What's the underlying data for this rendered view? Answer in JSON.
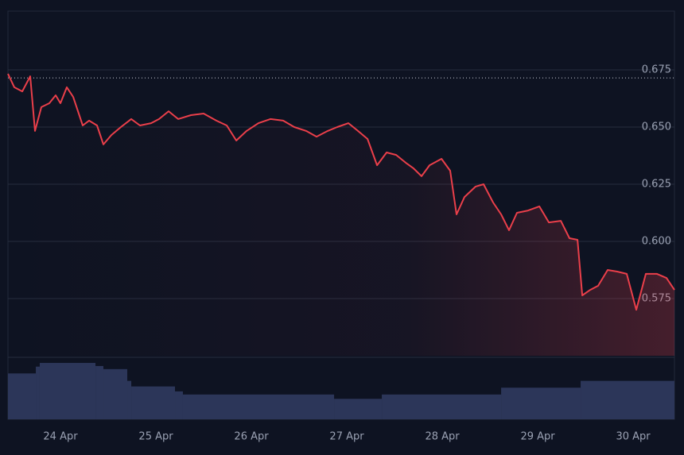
{
  "chart_data": {
    "type": "line",
    "x": [
      23.45,
      23.517,
      23.6,
      23.683,
      23.733,
      23.8,
      23.883,
      23.95,
      24.0,
      24.067,
      24.133,
      24.233,
      24.3,
      24.383,
      24.45,
      24.533,
      24.633,
      24.742,
      24.833,
      24.95,
      25.033,
      25.133,
      25.233,
      25.367,
      25.5,
      25.633,
      25.742,
      25.842,
      25.95,
      26.075,
      26.2,
      26.333,
      26.45,
      26.575,
      26.683,
      26.8,
      26.9,
      27.017,
      27.117,
      27.217,
      27.317,
      27.417,
      27.517,
      27.617,
      27.7,
      27.783,
      27.867,
      27.992,
      28.083,
      28.15,
      28.233,
      28.35,
      28.433,
      28.533,
      28.617,
      28.7,
      28.783,
      28.9,
      29.017,
      29.117,
      29.242,
      29.333,
      29.417,
      29.467,
      29.55,
      29.633,
      29.733,
      29.833,
      29.933,
      30.033,
      30.133,
      30.25,
      30.35,
      30.433
    ],
    "values": [
      0.6733,
      0.6674,
      0.6656,
      0.6722,
      0.6483,
      0.6587,
      0.6604,
      0.6639,
      0.6604,
      0.6674,
      0.6632,
      0.6507,
      0.6528,
      0.6507,
      0.6424,
      0.6465,
      0.65,
      0.6535,
      0.6507,
      0.6517,
      0.6535,
      0.6569,
      0.6535,
      0.6552,
      0.6559,
      0.6528,
      0.6507,
      0.6441,
      0.6483,
      0.6517,
      0.6535,
      0.6528,
      0.65,
      0.6483,
      0.6458,
      0.6483,
      0.65,
      0.6517,
      0.6483,
      0.6448,
      0.6333,
      0.6389,
      0.6378,
      0.6344,
      0.6319,
      0.6285,
      0.6333,
      0.6361,
      0.6309,
      0.6118,
      0.6194,
      0.624,
      0.625,
      0.617,
      0.6118,
      0.6049,
      0.6125,
      0.6135,
      0.6153,
      0.6083,
      0.609,
      0.6014,
      0.6007,
      0.5764,
      0.5788,
      0.5806,
      0.5875,
      0.5868,
      0.5858,
      0.5701,
      0.5858,
      0.5858,
      0.584,
      0.5788
    ],
    "color": "#ea3f4a",
    "xlim": [
      23.45,
      30.433
    ],
    "xticks": [
      {
        "value": 24,
        "label": "24 Apr"
      },
      {
        "value": 25,
        "label": "25 Apr"
      },
      {
        "value": 26,
        "label": "26 Apr"
      },
      {
        "value": 27,
        "label": "27 Apr"
      },
      {
        "value": 28,
        "label": "28 Apr"
      },
      {
        "value": 29,
        "label": "29 Apr"
      },
      {
        "value": 30,
        "label": "30 Apr"
      }
    ],
    "ylim": [
      0.55,
      0.7
    ],
    "yticks": [
      0.575,
      {
        "value": 0.6,
        "label": "0.600"
      },
      0.625,
      {
        "value": 0.65,
        "label": "0.650"
      },
      0.675
    ],
    "grid": true,
    "reference_line": 0.6715,
    "volume": {
      "bins": [
        23.45,
        23.742,
        23.783,
        24.367,
        24.45,
        24.7,
        24.742,
        25.2,
        25.283,
        26.867,
        27.367,
        28.617,
        29.45,
        30.433
      ],
      "values": [
        74,
        85,
        91,
        86,
        81,
        62,
        53,
        45,
        40,
        33,
        40,
        51,
        62
      ],
      "ylim": [
        0,
        100
      ],
      "color": "#2c3659"
    }
  }
}
